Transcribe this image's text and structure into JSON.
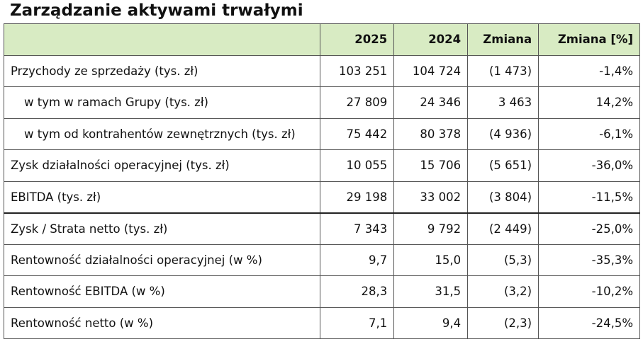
{
  "title": "Zarządzanie aktywami trwałymi",
  "table": {
    "columns": [
      "2025",
      "2024",
      "Zmiana",
      "Zmiana [%]"
    ],
    "rows": [
      {
        "label": "Przychody ze sprzedaży (tys. zł)",
        "cells": [
          "103 251",
          "104 724",
          "(1 473)",
          "-1,4%"
        ]
      },
      {
        "label": "w tym w ramach Grupy (tys. zł)",
        "indent": true,
        "cells": [
          "27 809",
          "24 346",
          "3 463",
          "14,2%"
        ]
      },
      {
        "label": "w tym od kontrahentów zewnętrznych (tys. zł)",
        "indent": true,
        "cells": [
          "75 442",
          "80 378",
          "(4 936)",
          "-6,1%"
        ]
      },
      {
        "label": "Zysk działalności operacyjnej (tys. zł)",
        "cells": [
          "10 055",
          "15 706",
          "(5 651)",
          "-36,0%"
        ]
      },
      {
        "label": "EBITDA (tys. zł)",
        "cells": [
          "29 198",
          "33 002",
          "(3 804)",
          "-11,5%"
        ]
      },
      {
        "label": "Zysk / Strata netto (tys. zł)",
        "cells": [
          "7 343",
          "9 792",
          "(2 449)",
          "-25,0%"
        ]
      },
      {
        "label": "Rentowność działalności operacyjnej (w %)",
        "cells": [
          "9,7",
          "15,0",
          "(5,3)",
          "-35,3%"
        ]
      },
      {
        "label": "Rentowność EBITDA (w %)",
        "cells": [
          "28,3",
          "31,5",
          "(3,2)",
          "-10,2%"
        ]
      },
      {
        "label": "Rentowność netto (w %)",
        "cells": [
          "7,1",
          "9,4",
          "(2,3)",
          "-24,5%"
        ]
      }
    ]
  }
}
